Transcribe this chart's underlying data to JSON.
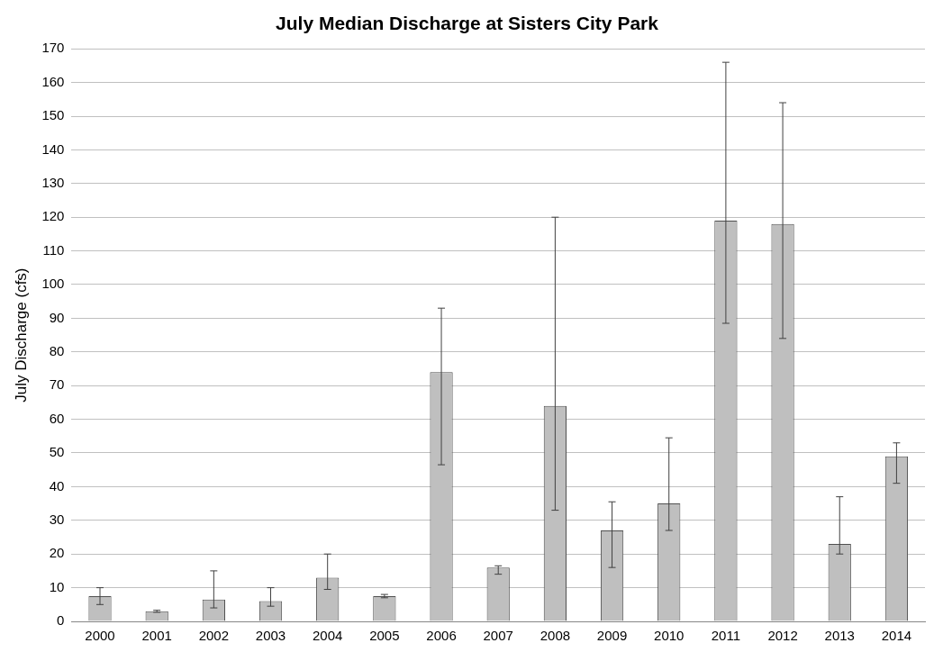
{
  "chart_data": {
    "type": "bar",
    "title": "July Median Discharge at Sisters City Park",
    "ylabel": "July Discharge (cfs)",
    "categories": [
      "2000",
      "2001",
      "2002",
      "2003",
      "2004",
      "2005",
      "2006",
      "2007",
      "2008",
      "2009",
      "2010",
      "2011",
      "2012",
      "2013",
      "2014"
    ],
    "values": [
      7.5,
      3,
      6.5,
      6,
      13,
      7.5,
      74,
      16,
      64,
      27,
      35,
      119,
      118,
      23,
      49
    ],
    "errors": [
      [
        5,
        10
      ],
      [
        2.7,
        3.3
      ],
      [
        4,
        15
      ],
      [
        4.5,
        10
      ],
      [
        9.5,
        20
      ],
      [
        7,
        8
      ],
      [
        46.5,
        93
      ],
      [
        14,
        16.5
      ],
      [
        33,
        120
      ],
      [
        16,
        35.5
      ],
      [
        27,
        54.5
      ],
      [
        88.5,
        166
      ],
      [
        84,
        154
      ],
      [
        20,
        37
      ],
      [
        41,
        53
      ]
    ],
    "color": "#bfbfbf",
    "ylim": [
      0,
      170
    ],
    "yticks": [
      0,
      10,
      20,
      30,
      40,
      50,
      60,
      70,
      80,
      90,
      100,
      110,
      120,
      130,
      140,
      150,
      160,
      170
    ],
    "grid": "y",
    "legend": false
  }
}
